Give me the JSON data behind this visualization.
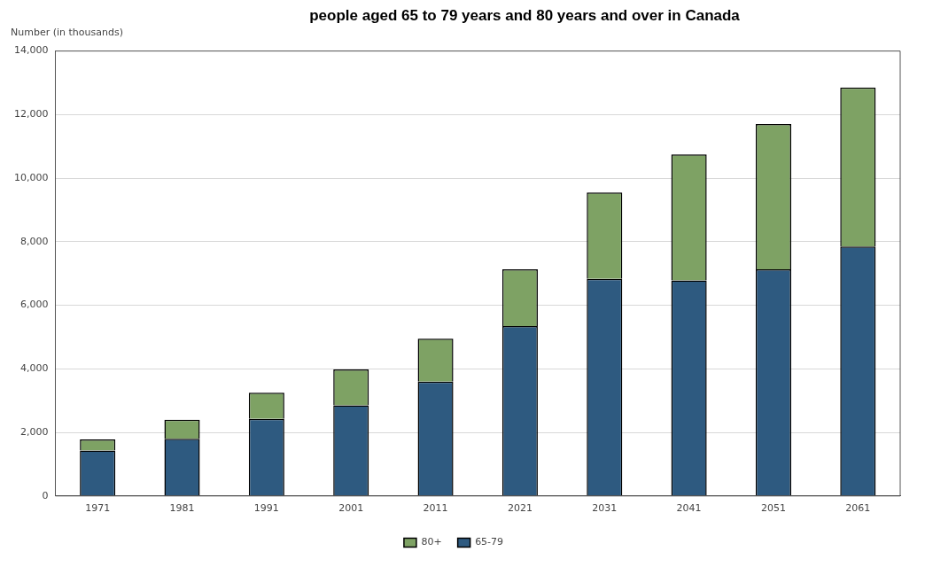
{
  "chart_data": {
    "type": "bar",
    "title": "people aged 65 to 79 years and 80 years and over in Canada",
    "ylabel": "Number (in thousands)",
    "categories": [
      "1971",
      "1981",
      "1991",
      "2001",
      "2011",
      "2021",
      "2031",
      "2041",
      "2051",
      "2061"
    ],
    "stacked": true,
    "ylim": [
      0,
      14000
    ],
    "yticks": [
      0,
      {
        "value": 2000,
        "label": "2,000"
      },
      {
        "value": 4000,
        "label": "4,000"
      },
      {
        "value": 6000,
        "label": "6,000"
      },
      {
        "value": 8000,
        "label": "8,000"
      },
      {
        "value": 10000,
        "label": "10,000"
      },
      {
        "value": 12000,
        "label": "12,000"
      },
      {
        "value": 14000,
        "label": "14,000"
      }
    ],
    "grid": "y",
    "legend": "bottom",
    "series": [
      {
        "name": "65-79",
        "color": "#2e5a80",
        "values": [
          1430,
          1800,
          2430,
          2850,
          3600,
          5350,
          6830,
          6780,
          7130,
          7850
        ]
      },
      {
        "name": "80+",
        "color": "#7ea264",
        "values": [
          350,
          600,
          820,
          1130,
          1350,
          1780,
          2720,
          3970,
          4570,
          5000
        ]
      }
    ]
  }
}
